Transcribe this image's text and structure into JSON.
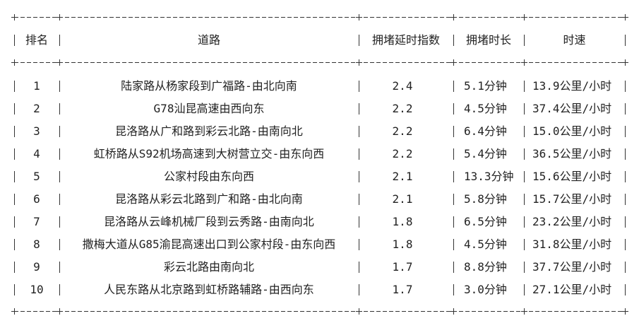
{
  "headers": {
    "rank": "排名",
    "road": "道路",
    "index": "拥堵延时指数",
    "duration": "拥堵时长",
    "speed": "时速"
  },
  "rows": [
    {
      "rank": "1",
      "road": "陆家路从杨家段到广福路-由北向南",
      "index": "2.4",
      "duration": "5.1分钟",
      "speed": "13.9公里/小时"
    },
    {
      "rank": "2",
      "road": "G78汕昆高速由西向东",
      "index": "2.2",
      "duration": "4.5分钟",
      "speed": "37.4公里/小时"
    },
    {
      "rank": "3",
      "road": "昆洛路从广和路到彩云北路-由南向北",
      "index": "2.2",
      "duration": "6.4分钟",
      "speed": "15.0公里/小时"
    },
    {
      "rank": "4",
      "road": "虹桥路从S92机场高速到大树营立交-由东向西",
      "index": "2.2",
      "duration": "5.4分钟",
      "speed": "36.5公里/小时"
    },
    {
      "rank": "5",
      "road": "公家村段由东向西",
      "index": "2.1",
      "duration": "13.3分钟",
      "speed": "15.6公里/小时"
    },
    {
      "rank": "6",
      "road": "昆洛路从彩云北路到广和路-由北向南",
      "index": "2.1",
      "duration": "5.8分钟",
      "speed": "15.7公里/小时"
    },
    {
      "rank": "7",
      "road": "昆洛路从云峰机械厂段到云秀路-由南向北",
      "index": "1.8",
      "duration": "6.5分钟",
      "speed": "23.2公里/小时"
    },
    {
      "rank": "8",
      "road": "撒梅大道从G85渝昆高速出口到公家村段-由东向西",
      "index": "1.8",
      "duration": "4.5分钟",
      "speed": "31.8公里/小时"
    },
    {
      "rank": "9",
      "road": "彩云北路由南向北",
      "index": "1.7",
      "duration": "8.8分钟",
      "speed": "37.7公里/小时"
    },
    {
      "rank": "10",
      "road": "人民东路从北京路到虹桥路辅路-由西向东",
      "index": "1.7",
      "duration": "3.0分钟",
      "speed": "27.1公里/小时"
    }
  ]
}
